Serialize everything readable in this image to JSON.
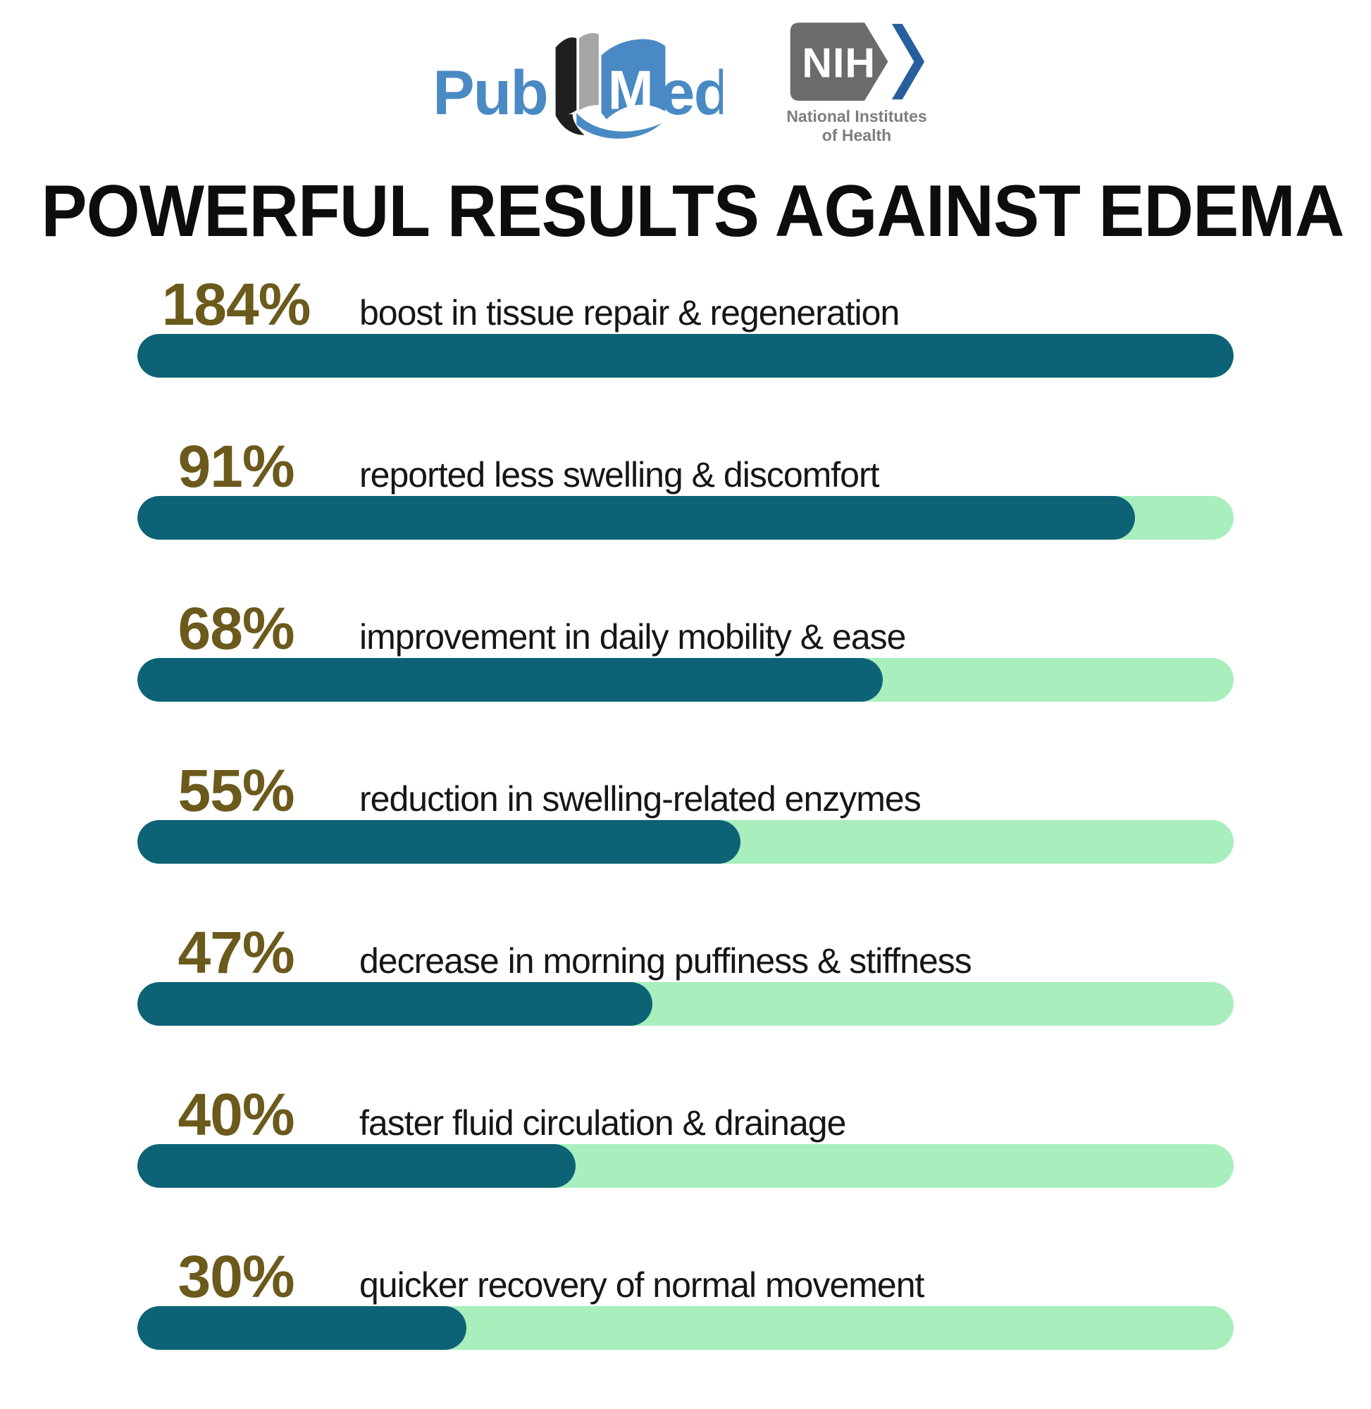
{
  "header": {
    "pubmed": {
      "pub": "Pub",
      "m": "M",
      "ed": "ed"
    },
    "nih": {
      "acronym": "NIH",
      "caption_line1": "National Institutes",
      "caption_line2": "of Health"
    }
  },
  "title": "POWERFUL RESULTS AGAINST EDEMA",
  "chart_data": {
    "type": "bar",
    "orientation": "horizontal",
    "unit": "%",
    "track_range": [
      0,
      100
    ],
    "items": [
      {
        "value": "184%",
        "percent": 184,
        "label": "boost in tissue repair & regeneration"
      },
      {
        "value": "91%",
        "percent": 91,
        "label": "reported less swelling & discomfort"
      },
      {
        "value": "68%",
        "percent": 68,
        "label": "improvement in daily mobility & ease"
      },
      {
        "value": "55%",
        "percent": 55,
        "label": "reduction in swelling-related enzymes"
      },
      {
        "value": "47%",
        "percent": 47,
        "label": "decrease in morning puffiness & stiffness"
      },
      {
        "value": "40%",
        "percent": 40,
        "label": "faster fluid circulation & drainage"
      },
      {
        "value": "30%",
        "percent": 30,
        "label": "quicker recovery of normal movement"
      }
    ],
    "colors": {
      "bar_fill": "#0d6375",
      "bar_track": "#a9eebd",
      "percent_text": "#6b5a1c",
      "label_text": "#161616",
      "title_text": "#0d0d0d"
    }
  },
  "brand_colors": {
    "pubmed_blue": "#4a8ac4",
    "nih_gray": "#6a6b6d",
    "nih_blue": "#265f9c",
    "caption_gray": "#7c7e80"
  }
}
